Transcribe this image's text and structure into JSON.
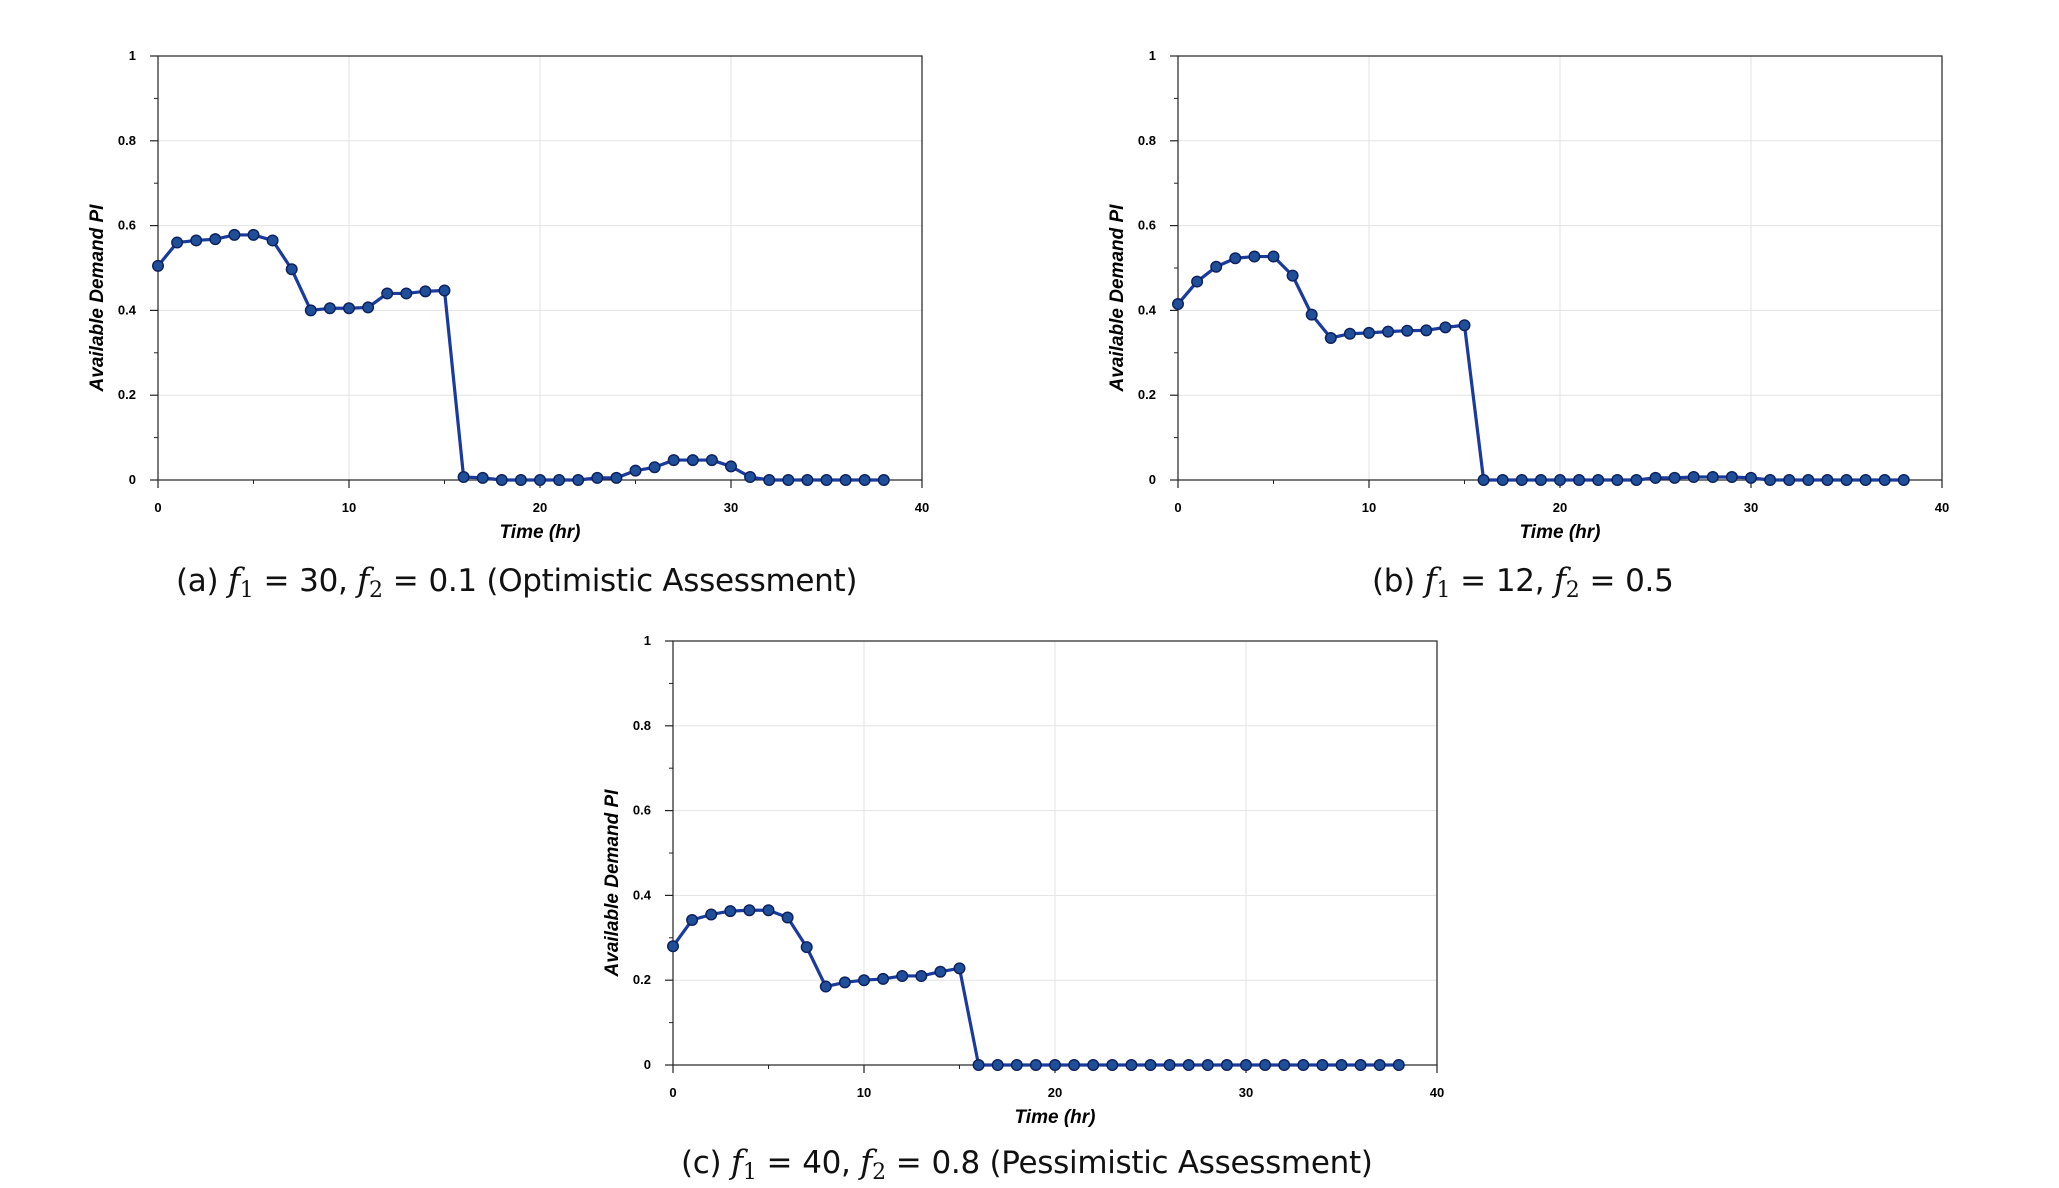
{
  "colors": {
    "line": "#1a3a9e",
    "marker_fill": "#1f4f99",
    "marker_edge": "#0d1f5c",
    "grid": "#e3e3e3",
    "axis": "#222222"
  },
  "chart_data": [
    {
      "id": "a",
      "type": "line",
      "xlabel": "Time (hr)",
      "ylabel": "Available Demand PI",
      "xlim": [
        0,
        40
      ],
      "ylim": [
        0,
        1
      ],
      "xticks": [
        "0",
        "10",
        "20",
        "30",
        "40"
      ],
      "yticks": [
        "0",
        "0.2",
        "0.4",
        "0.6",
        "0.8",
        "1"
      ],
      "grid": true,
      "caption": {
        "prefix": "(a) ",
        "f1_symbol": "f",
        "f1_sub": "1",
        "equals": "=",
        "f1_value": "30,",
        "f2_symbol": "f",
        "f2_sub": "2",
        "f2_value": "0.1",
        "suffix": " (Optimistic Assessment)"
      },
      "x": [
        0,
        1,
        2,
        3,
        4,
        5,
        6,
        7,
        8,
        9,
        10,
        11,
        12,
        13,
        14,
        15,
        16,
        17,
        18,
        19,
        20,
        21,
        22,
        23,
        24,
        25,
        26,
        27,
        28,
        29,
        30,
        31,
        32,
        33,
        34,
        35,
        36,
        37,
        38
      ],
      "y": [
        0.505,
        0.56,
        0.565,
        0.568,
        0.578,
        0.578,
        0.565,
        0.497,
        0.4,
        0.405,
        0.405,
        0.407,
        0.44,
        0.44,
        0.445,
        0.447,
        0.007,
        0.005,
        0.0,
        0.0,
        0.0,
        0.0,
        0.0,
        0.005,
        0.005,
        0.022,
        0.03,
        0.047,
        0.047,
        0.047,
        0.032,
        0.007,
        0.0,
        0.0,
        0.0,
        0.0,
        0.0,
        0.0,
        0.0
      ]
    },
    {
      "id": "b",
      "type": "line",
      "xlabel": "Time (hr)",
      "ylabel": "Available Demand PI",
      "xlim": [
        0,
        40
      ],
      "ylim": [
        0,
        1
      ],
      "xticks": [
        "0",
        "10",
        "20",
        "30",
        "40"
      ],
      "yticks": [
        "0",
        "0.2",
        "0.4",
        "0.6",
        "0.8",
        "1"
      ],
      "grid": true,
      "caption": {
        "prefix": "(b) ",
        "f1_symbol": "f",
        "f1_sub": "1",
        "equals": "=",
        "f1_value": "12,",
        "f2_symbol": "f",
        "f2_sub": "2",
        "f2_value": "0.5",
        "suffix": ""
      },
      "x": [
        0,
        1,
        2,
        3,
        4,
        5,
        6,
        7,
        8,
        9,
        10,
        11,
        12,
        13,
        14,
        15,
        16,
        17,
        18,
        19,
        20,
        21,
        22,
        23,
        24,
        25,
        26,
        27,
        28,
        29,
        30,
        31,
        32,
        33,
        34,
        35,
        36,
        37,
        38
      ],
      "y": [
        0.415,
        0.468,
        0.503,
        0.523,
        0.527,
        0.527,
        0.482,
        0.39,
        0.335,
        0.345,
        0.347,
        0.35,
        0.352,
        0.353,
        0.36,
        0.365,
        0.0,
        0.0,
        0.0,
        0.0,
        0.0,
        0.0,
        0.0,
        0.0,
        0.0,
        0.005,
        0.005,
        0.007,
        0.007,
        0.007,
        0.005,
        0.0,
        0.0,
        0.0,
        0.0,
        0.0,
        0.0,
        0.0,
        0.0
      ]
    },
    {
      "id": "c",
      "type": "line",
      "xlabel": "Time (hr)",
      "ylabel": "Available Demand PI",
      "xlim": [
        0,
        40
      ],
      "ylim": [
        0,
        1
      ],
      "xticks": [
        "0",
        "10",
        "20",
        "30",
        "40"
      ],
      "yticks": [
        "0",
        "0.2",
        "0.4",
        "0.6",
        "0.8",
        "1"
      ],
      "grid": true,
      "caption": {
        "prefix": "(c) ",
        "f1_symbol": "f",
        "f1_sub": "1",
        "equals": "=",
        "f1_value": "40,",
        "f2_symbol": "f",
        "f2_sub": "2",
        "f2_value": "0.8",
        "suffix": " (Pessimistic Assessment)"
      },
      "x": [
        0,
        1,
        2,
        3,
        4,
        5,
        6,
        7,
        8,
        9,
        10,
        11,
        12,
        13,
        14,
        15,
        16,
        17,
        18,
        19,
        20,
        21,
        22,
        23,
        24,
        25,
        26,
        27,
        28,
        29,
        30,
        31,
        32,
        33,
        34,
        35,
        36,
        37,
        38
      ],
      "y": [
        0.28,
        0.342,
        0.355,
        0.363,
        0.365,
        0.365,
        0.348,
        0.278,
        0.185,
        0.195,
        0.2,
        0.203,
        0.21,
        0.21,
        0.22,
        0.228,
        0.0,
        0.0,
        0.0,
        0.0,
        0.0,
        0.0,
        0.0,
        0.0,
        0.0,
        0.0,
        0.0,
        0.0,
        0.0,
        0.0,
        0.0,
        0.0,
        0.0,
        0.0,
        0.0,
        0.0,
        0.0,
        0.0,
        0.0
      ]
    }
  ]
}
